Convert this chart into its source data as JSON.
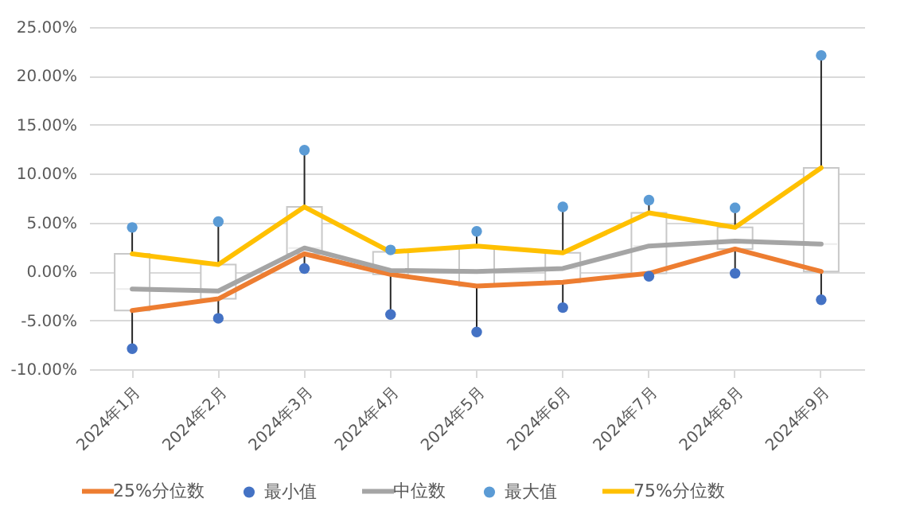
{
  "chart_data": {
    "type": "box",
    "categories": [
      "2024年1月",
      "2024年2月",
      "2024年3月",
      "2024年4月",
      "2024年5月",
      "2024年6月",
      "2024年7月",
      "2024年8月",
      "2024年9月"
    ],
    "boxes": [
      {
        "low": -7.9,
        "q1": -4.0,
        "median": -1.8,
        "q3": 1.8,
        "high": 4.5
      },
      {
        "low": -4.8,
        "q1": -2.8,
        "median": -2.0,
        "q3": 0.7,
        "high": 5.1
      },
      {
        "low": 0.3,
        "q1": 1.8,
        "median": 2.4,
        "q3": 6.6,
        "high": 12.4
      },
      {
        "low": -4.4,
        "q1": -0.3,
        "median": 0.1,
        "q3": 2.0,
        "high": 2.2
      },
      {
        "low": -6.2,
        "q1": -1.5,
        "median": 0.0,
        "q3": 2.6,
        "high": 4.1
      },
      {
        "low": -3.7,
        "q1": -1.1,
        "median": 0.3,
        "q3": 1.9,
        "high": 6.6
      },
      {
        "low": -0.5,
        "q1": -0.2,
        "median": 2.6,
        "q3": 6.0,
        "high": 7.3
      },
      {
        "low": -0.2,
        "q1": 2.3,
        "median": 3.1,
        "q3": 4.5,
        "high": 6.5
      },
      {
        "low": -2.9,
        "q1": 0.0,
        "median": 2.8,
        "q3": 10.6,
        "high": 22.1
      }
    ],
    "series": [
      {
        "name": "25%分位数",
        "type": "line",
        "color": "#ed7d31",
        "values": [
          -4.0,
          -2.8,
          1.8,
          -0.3,
          -1.5,
          -1.1,
          -0.2,
          2.3,
          0.0
        ]
      },
      {
        "name": "最小值",
        "type": "scatter",
        "color": "#4472c4",
        "values": [
          -7.9,
          -4.8,
          0.3,
          -4.4,
          -6.2,
          -3.7,
          -0.5,
          -0.2,
          -2.9
        ]
      },
      {
        "name": "中位数",
        "type": "line",
        "color": "#a5a5a5",
        "values": [
          -1.8,
          -2.0,
          2.4,
          0.1,
          0.0,
          0.3,
          2.6,
          3.1,
          2.8
        ]
      },
      {
        "name": "最大值",
        "type": "scatter",
        "color": "#5b9bd5",
        "values": [
          4.5,
          5.1,
          12.4,
          2.2,
          4.1,
          6.6,
          7.3,
          6.5,
          22.1
        ]
      },
      {
        "name": "75%分位数",
        "type": "line",
        "color": "#ffc000",
        "values": [
          1.8,
          0.7,
          6.6,
          2.0,
          2.6,
          1.9,
          6.0,
          4.5,
          10.6
        ]
      }
    ],
    "ylim": [
      -10,
      25
    ],
    "yticks": [
      {
        "value": -10,
        "label": "-10.00%"
      },
      {
        "value": -5,
        "label": "-5.00%"
      },
      {
        "value": 0,
        "label": "0.00%"
      },
      {
        "value": 5,
        "label": "5.00%"
      },
      {
        "value": 10,
        "label": "10.00%"
      },
      {
        "value": 15,
        "label": "15.00%"
      },
      {
        "value": 20,
        "label": "20.00%"
      },
      {
        "value": 25,
        "label": "25.00%"
      }
    ],
    "grid": "y",
    "legend": "bottom"
  }
}
